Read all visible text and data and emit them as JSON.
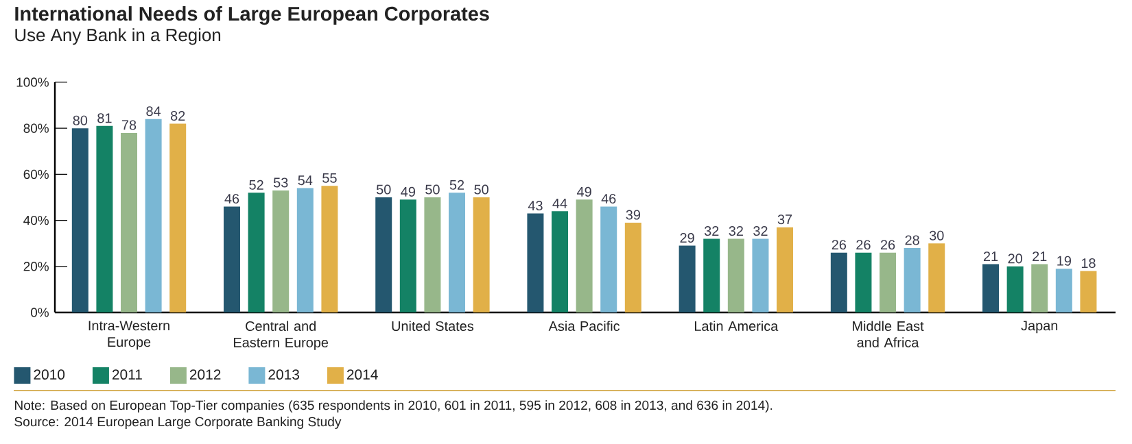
{
  "chart_data": {
    "type": "bar",
    "title": "International Needs of Large European Corporates",
    "subtitle": "Use Any Bank in a Region",
    "categories": [
      "Intra-Western Europe",
      "Central and Eastern Europe",
      "United States",
      "Asia Pacific",
      "Latin America",
      "Middle East and Africa",
      "Japan"
    ],
    "series": [
      {
        "name": "2010",
        "color": "#24576f",
        "values": [
          80,
          46,
          50,
          43,
          29,
          26,
          21
        ]
      },
      {
        "name": "2011",
        "color": "#148265",
        "values": [
          81,
          52,
          49,
          44,
          32,
          26,
          20
        ]
      },
      {
        "name": "2012",
        "color": "#97b78a",
        "values": [
          78,
          53,
          50,
          49,
          32,
          26,
          21
        ]
      },
      {
        "name": "2013",
        "color": "#7ab7d4",
        "values": [
          84,
          54,
          52,
          46,
          32,
          28,
          19
        ]
      },
      {
        "name": "2014",
        "color": "#e1b048",
        "values": [
          82,
          55,
          50,
          39,
          37,
          30,
          18
        ]
      }
    ],
    "ylim": [
      0,
      100
    ],
    "yticks": [
      {
        "value": 0,
        "label": "0%"
      },
      {
        "value": 20,
        "label": "20%"
      },
      {
        "value": 40,
        "label": "40%"
      },
      {
        "value": 60,
        "label": "60%"
      },
      {
        "value": 80,
        "label": "80%"
      },
      {
        "value": 100,
        "label": "100%"
      }
    ],
    "data_labels": true,
    "legend": "bottom left",
    "annotations": [
      "Note: Based on European Top-Tier companies (635 respondents in 2010, 601 in 2011, 595 in 2012, 608 in 2013, and 636 in 2014).",
      "Source: 2014 European Large Corporate Banking Study"
    ]
  }
}
